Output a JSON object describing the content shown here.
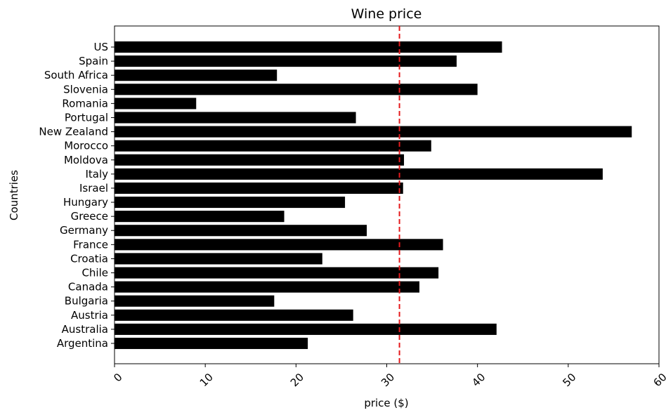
{
  "chart_data": {
    "type": "bar",
    "orientation": "horizontal",
    "title": "Wine price",
    "xlabel": "price ($)",
    "ylabel": "Countries",
    "xlim": [
      0,
      60
    ],
    "xticks": [
      0,
      10,
      20,
      30,
      40,
      50,
      60
    ],
    "xtick_rotation": "45-degree",
    "categories": [
      "Argentina",
      "Australia",
      "Austria",
      "Bulgaria",
      "Canada",
      "Chile",
      "Croatia",
      "France",
      "Germany",
      "Greece",
      "Hungary",
      "Israel",
      "Italy",
      "Moldova",
      "Morocco",
      "New Zealand",
      "Portugal",
      "Romania",
      "Slovenia",
      "South Africa",
      "Spain",
      "US"
    ],
    "values": [
      21.3,
      42.1,
      26.3,
      17.6,
      33.6,
      35.7,
      22.9,
      36.2,
      27.8,
      18.7,
      25.4,
      31.8,
      53.8,
      31.9,
      34.9,
      57.0,
      26.6,
      9.0,
      40.0,
      17.9,
      37.7,
      42.7
    ],
    "bar_color": "#000000",
    "reference_line": {
      "value": 31.4,
      "orientation": "vertical",
      "style": "dashed",
      "color": "#e41a1c"
    },
    "grid": false,
    "legend": "none"
  }
}
